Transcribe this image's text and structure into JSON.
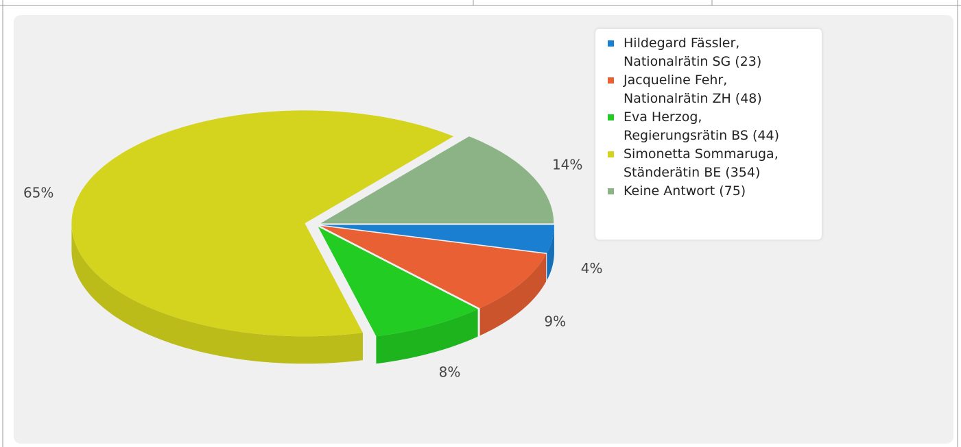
{
  "chart_data": {
    "type": "pie",
    "categories": [
      "Hildegard Fässler, Nationalrätin SG (23)",
      "Jacqueline Fehr, Nationalrätin ZH (48)",
      "Eva Herzog, Regierungsrätin BS (44)",
      "Simonetta Sommaruga, Ständerätin BE (354)",
      "Keine Antwort (75)"
    ],
    "values": [
      4,
      9,
      8,
      65,
      14
    ],
    "value_labels": [
      "4%",
      "9%",
      "8%",
      "65%",
      "14%"
    ],
    "colors": [
      "#1a7fd0",
      "#e86033",
      "#22cc22",
      "#d4d41e",
      "#8bb386"
    ],
    "legend": "top-right"
  }
}
